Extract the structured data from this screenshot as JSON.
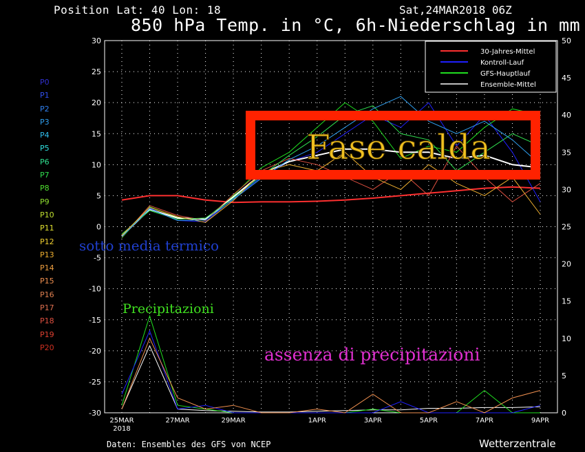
{
  "header": {
    "position_text": "Position  Lat: 40 Lon: 18",
    "run_text": "Sat,24MAR2018 06Z",
    "title": "850 hPa Temp. in °C, 6h-Niederschlag in mm"
  },
  "footer": {
    "source": "Daten: Ensembles des GFS von NCEP",
    "brand": "Wetterzentrale"
  },
  "members": [
    "P0",
    "P1",
    "P2",
    "P3",
    "P4",
    "P5",
    "P6",
    "P7",
    "P8",
    "P9",
    "P10",
    "P11",
    "P12",
    "P13",
    "P14",
    "P15",
    "P16",
    "P17",
    "P18",
    "P19",
    "P20"
  ],
  "member_colors": [
    "#3030d0",
    "#3050f0",
    "#3080f0",
    "#30a0f0",
    "#30c0f0",
    "#30e0e0",
    "#30e090",
    "#30e050",
    "#50e030",
    "#90e030",
    "#c0e030",
    "#e0e030",
    "#f0d030",
    "#f0b030",
    "#f0a040",
    "#f09050",
    "#e08050",
    "#e07050",
    "#e05040",
    "#e04030",
    "#d03020"
  ],
  "annotations": {
    "box_label": "Fase calda",
    "below_avg": "sotto media termico",
    "precip": "Precipitazioni",
    "no_precip": "assenza di precipitazioni"
  },
  "colors": {
    "box": "#ff2200",
    "box_label": "#f0c020",
    "below_avg": "#2040d0",
    "precip": "#40e020",
    "no_precip": "#e030d0",
    "climate": "#ff3030",
    "control": "#2020ff",
    "operational": "#20e020",
    "ensemble_mean": "#ffffff"
  },
  "chart_data": {
    "type": "line",
    "x_tick_labels": [
      "25MAR",
      "27MAR",
      "29MAR",
      "1APR",
      "3APR",
      "5APR",
      "7APR",
      "9APR"
    ],
    "x_year_label": "2018",
    "x": [
      "25MAR",
      "26MAR",
      "27MAR",
      "28MAR",
      "29MAR",
      "30MAR",
      "31MAR",
      "1APR",
      "2APR",
      "3APR",
      "4APR",
      "5APR",
      "6APR",
      "7APR",
      "8APR",
      "9APR"
    ],
    "y_left_label": "°C",
    "y_left_range": [
      -30,
      30
    ],
    "y_left_ticks": [
      -30,
      -25,
      -20,
      -15,
      -10,
      -5,
      0,
      5,
      10,
      15,
      20,
      25,
      30
    ],
    "y_right_label": "mm",
    "y_right_range": [
      0,
      50
    ],
    "y_right_ticks": [
      0,
      5,
      10,
      15,
      20,
      25,
      30,
      35,
      40,
      45,
      50
    ],
    "grid": true,
    "legend_position": "top-right",
    "legend": [
      "30-Jahres-Mittel",
      "Kontroll-Lauf",
      "GFS-Hauptlauf",
      "Ensemble-Mittel"
    ],
    "series": [
      {
        "name": "30-Jahres-Mittel",
        "axis": "left",
        "values": [
          4.3,
          5.0,
          5.0,
          4.3,
          3.9,
          4.0,
          4.0,
          4.1,
          4.3,
          4.6,
          5.0,
          5.4,
          5.8,
          6.2,
          6.4,
          6.2
        ]
      },
      {
        "name": "Kontroll-Lauf",
        "axis": "left",
        "values": [
          -1.5,
          3.0,
          1.0,
          0.8,
          4.5,
          8.0,
          10.5,
          12.0,
          15.0,
          18.0,
          16.0,
          20.0,
          13.0,
          18.0,
          12.0,
          4.0
        ]
      },
      {
        "name": "GFS-Hauptlauf",
        "axis": "left",
        "values": [
          -1.8,
          3.2,
          1.5,
          1.0,
          5.0,
          9.5,
          12.0,
          16.0,
          20.0,
          17.0,
          11.0,
          13.0,
          12.0,
          16.0,
          19.0,
          18.0
        ]
      },
      {
        "name": "Ensemble-Mittel",
        "axis": "left",
        "values": [
          -1.5,
          2.8,
          1.4,
          1.2,
          4.8,
          8.5,
          10.5,
          11.5,
          12.5,
          12.5,
          12.0,
          12.0,
          11.0,
          11.5,
          10.0,
          9.5
        ]
      },
      {
        "name": "P18",
        "axis": "left",
        "values": [
          -1.7,
          3.4,
          1.8,
          1.0,
          5.2,
          9.0,
          11.0,
          10.0,
          8.0,
          6.0,
          9.0,
          5.0,
          13.0,
          8.0,
          4.0,
          7.0
        ]
      },
      {
        "name": "P7",
        "axis": "left",
        "values": [
          -1.2,
          2.6,
          1.2,
          1.4,
          4.6,
          8.2,
          11.5,
          14.5,
          18.0,
          19.5,
          15.0,
          14.0,
          9.0,
          12.0,
          15.0,
          13.0
        ]
      },
      {
        "name": "P13",
        "axis": "left",
        "values": [
          -1.4,
          3.1,
          1.6,
          0.7,
          4.2,
          8.8,
          10.0,
          9.0,
          12.0,
          8.0,
          6.0,
          10.0,
          7.0,
          5.0,
          8.0,
          2.0
        ]
      },
      {
        "name": "P3",
        "axis": "left",
        "values": [
          -1.6,
          2.9,
          1.0,
          1.1,
          4.4,
          7.8,
          10.8,
          13.0,
          16.0,
          19.0,
          21.0,
          17.0,
          15.0,
          17.0,
          14.0,
          10.0
        ]
      },
      {
        "name": "Ensemble-Mittel-Niederschlag",
        "axis": "right",
        "values": [
          0.5,
          9.0,
          0.5,
          0.3,
          0.2,
          0.1,
          0.1,
          0.2,
          0.3,
          0.4,
          0.4,
          0.6,
          0.6,
          0.7,
          0.7,
          0.8
        ]
      },
      {
        "name": "GFS-Hauptlauf-Niederschlag",
        "axis": "right",
        "values": [
          1.0,
          13.0,
          1.0,
          0.5,
          0.0,
          0.0,
          0.0,
          0.0,
          0.0,
          0.5,
          0.0,
          0.0,
          0.0,
          3.0,
          0.0,
          0.0
        ]
      },
      {
        "name": "Kontroll-Lauf-Niederschlag",
        "axis": "right",
        "values": [
          2.5,
          11.0,
          0.5,
          1.0,
          0.0,
          0.0,
          0.0,
          0.0,
          0.0,
          0.0,
          1.5,
          0.0,
          0.0,
          0.0,
          0.0,
          1.0
        ]
      },
      {
        "name": "P15-Niederschlag",
        "axis": "right",
        "values": [
          0.5,
          10.0,
          2.0,
          0.5,
          1.0,
          0.0,
          0.0,
          0.5,
          0.0,
          2.5,
          0.0,
          0.0,
          1.5,
          0.0,
          2.0,
          3.0
        ]
      }
    ]
  }
}
